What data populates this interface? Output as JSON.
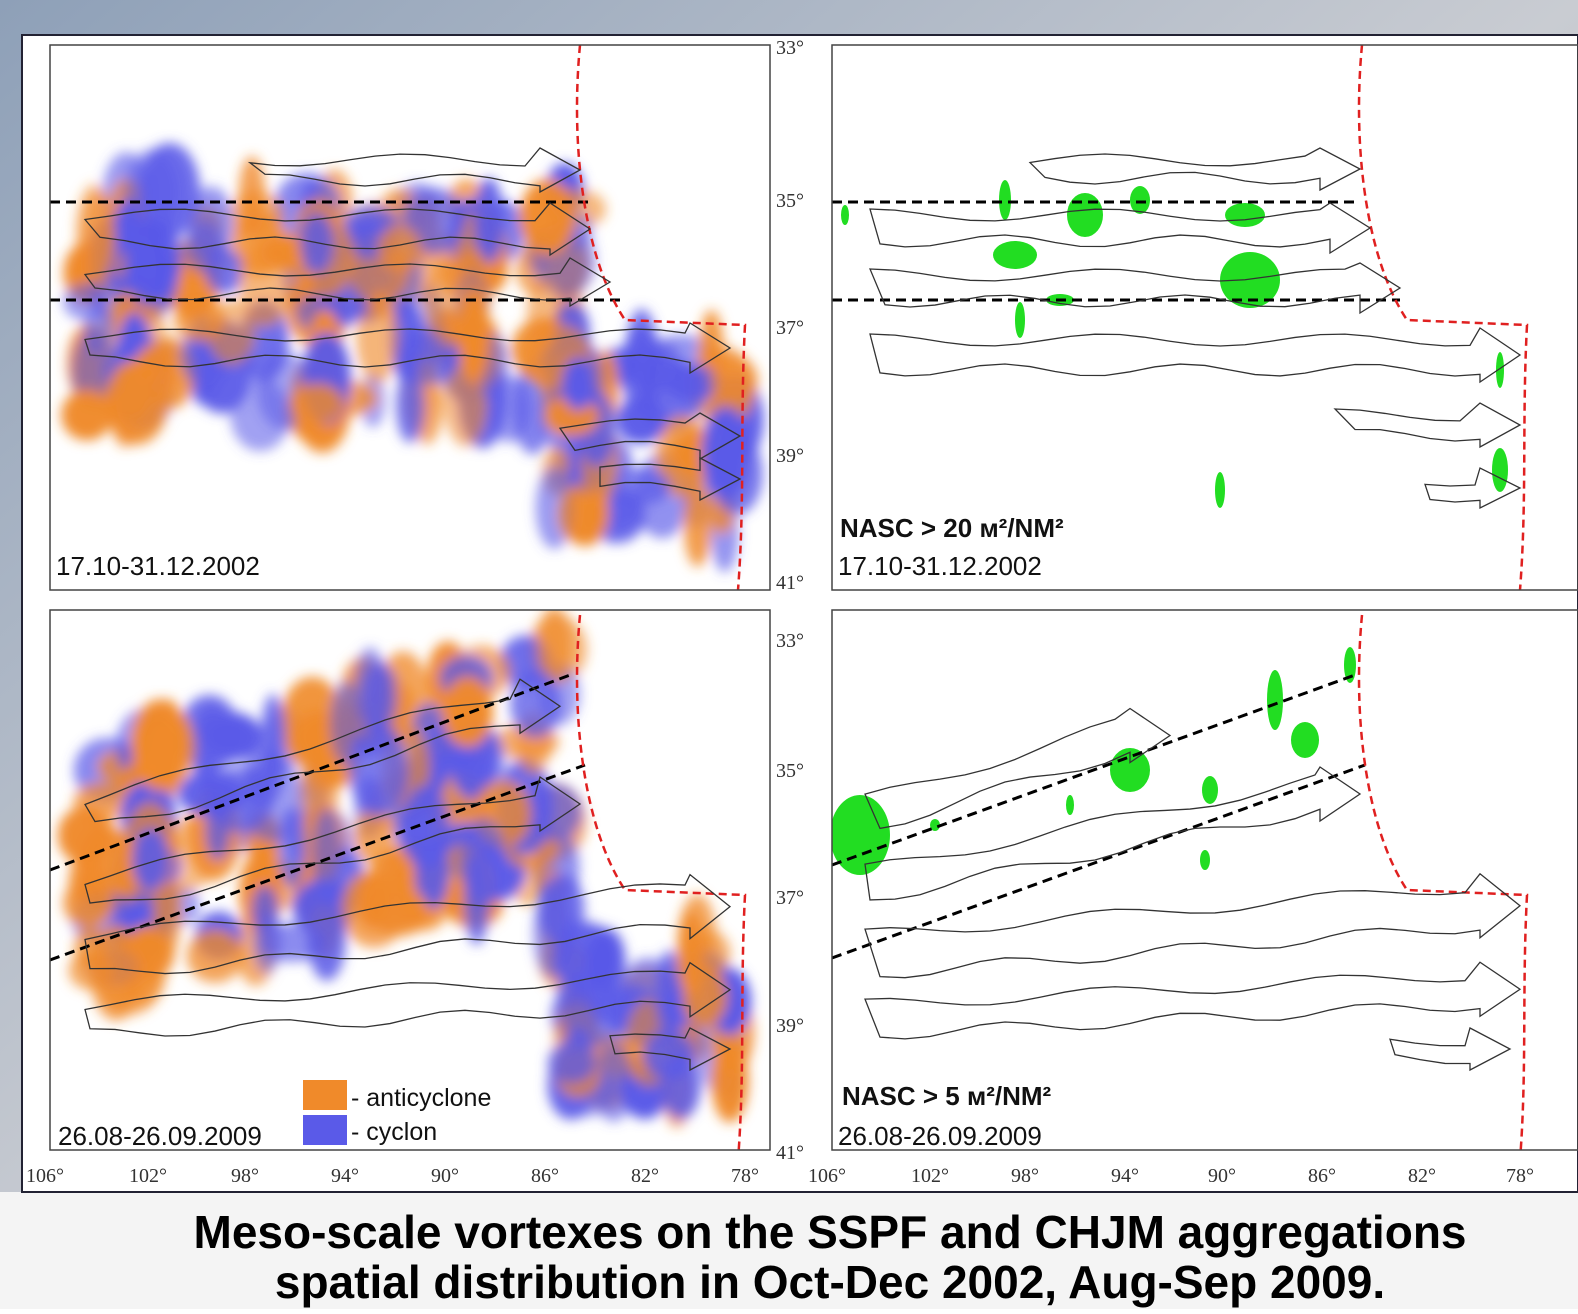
{
  "panels": [
    {
      "date": "17.10-31.12.2002"
    },
    {
      "label": "NASC > 20 м²/NM²",
      "date": "17.10-31.12.2002"
    },
    {
      "date": "26.08-26.09.2009"
    },
    {
      "label": "NASC > 5 м²/NM²",
      "date": "26.08-26.09.2009"
    }
  ],
  "latitude_labels": [
    "33°",
    "35°",
    "37°",
    "39°",
    "41°"
  ],
  "longitude_labels": [
    "106°",
    "102°",
    "98°",
    "94°",
    "90°",
    "86°",
    "82°",
    "78°"
  ],
  "legend": [
    {
      "label": "- anticyclone"
    },
    {
      "label": "- cyclon"
    }
  ],
  "title": [
    "Meso-scale vortexes on the SSPF and CHJM aggregations",
    "spatial distribution in Oct-Dec 2002, Aug-Sep 2009."
  ]
}
